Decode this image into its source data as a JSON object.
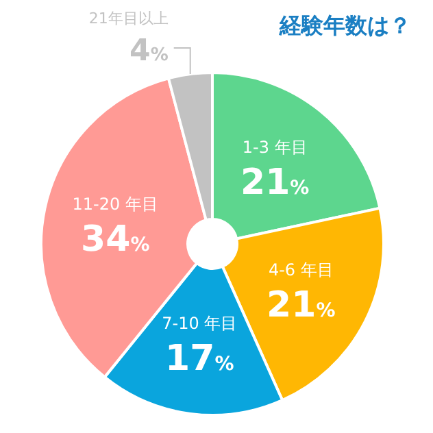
{
  "chart_data": {
    "type": "donut",
    "title": "経験年数は？",
    "categories": [
      "1-3 年目",
      "4-6 年目",
      "7-10 年目",
      "11-20 年目",
      "21年目以上"
    ],
    "values": [
      21,
      21,
      17,
      34,
      4
    ],
    "value_labels": [
      "21%",
      "21%",
      "17%",
      "34%",
      "4%"
    ],
    "colors": [
      "#5dd68e",
      "#ffb703",
      "#0aa5dd",
      "#ff9a95",
      "#c2c2c2"
    ]
  }
}
